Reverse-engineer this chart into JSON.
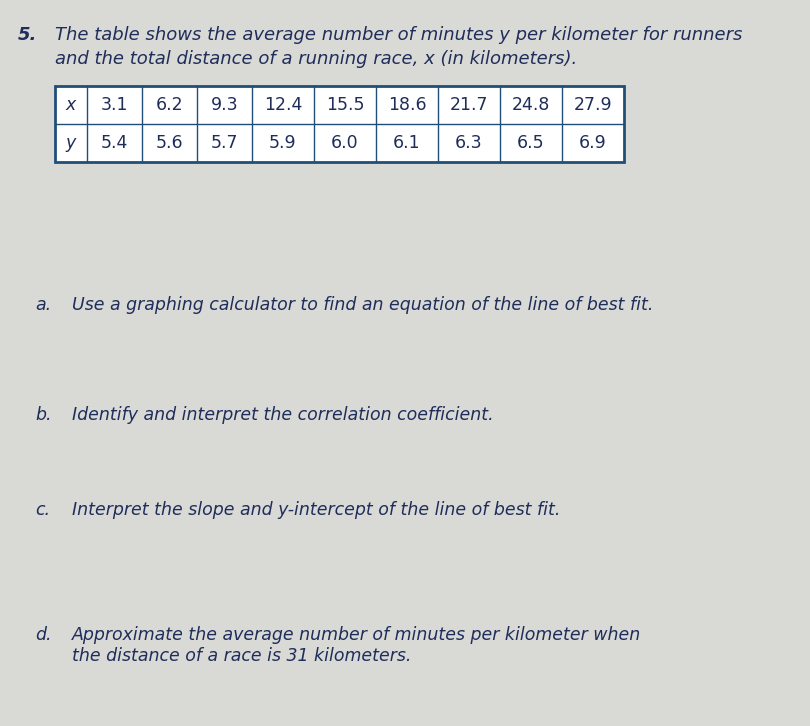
{
  "problem_number": "5.",
  "intro_text_line1": "The table shows the average number of minutes y per kilometer for runners",
  "intro_text_line2": "and the total distance of a running race, x (in kilometers).",
  "table": {
    "row_labels": [
      "x",
      "y"
    ],
    "x_values": [
      "3.1",
      "6.2",
      "9.3",
      "12.4",
      "15.5",
      "18.6",
      "21.7",
      "24.8",
      "27.9"
    ],
    "y_values": [
      "5.4",
      "5.6",
      "5.7",
      "5.9",
      "6.0",
      "6.1",
      "6.3",
      "6.5",
      "6.9"
    ]
  },
  "questions": [
    {
      "label": "a.",
      "text": "Use a graphing calculator to find an equation of the line of best fit."
    },
    {
      "label": "b.",
      "text": "Identify and interpret the correlation coefficient."
    },
    {
      "label": "c.",
      "text": "Interpret the slope and y-intercept of the line of best fit."
    },
    {
      "label": "d.",
      "text": "Approximate the average number of minutes per kilometer when\nthe distance of a race is 31 kilometers."
    }
  ],
  "background_color": "#d9d9d6",
  "table_border_color": "#1f4e79",
  "table_text_color": "#1f2d5a",
  "text_color": "#1f2d5a",
  "number_color": "#1a1a1a",
  "font_size_intro": 13.0,
  "font_size_table": 12.5,
  "font_size_questions": 12.5,
  "fig_width": 8.1,
  "fig_height": 7.26
}
